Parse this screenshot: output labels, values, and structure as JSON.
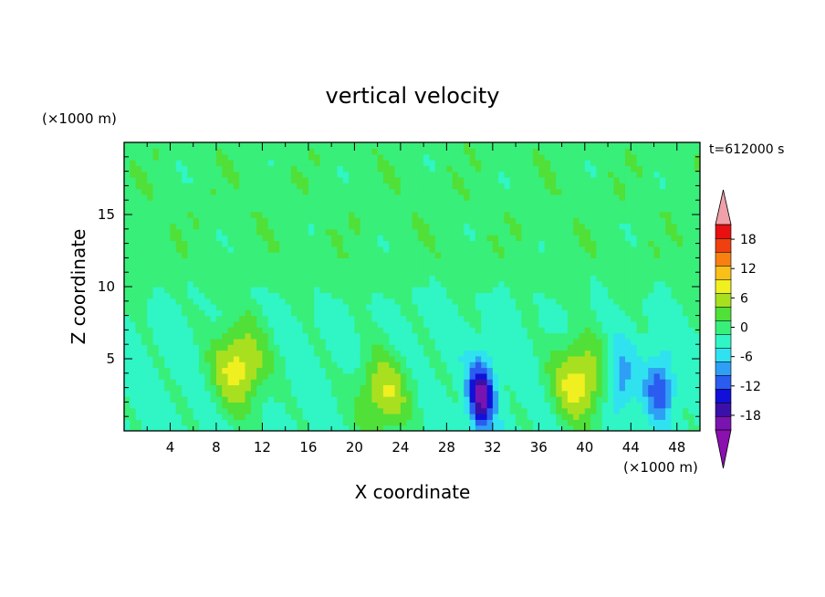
{
  "chart_data": {
    "type": "heatmap",
    "title": "vertical velocity",
    "xlabel": "X coordinate",
    "ylabel": "Z coordinate",
    "x_unit": "(×1000 m)",
    "y_unit": "(×1000 m)",
    "time_label": "t=612000 s",
    "xlim": [
      0,
      50
    ],
    "ylim": [
      0,
      20
    ],
    "x_ticks": [
      4,
      8,
      12,
      16,
      20,
      24,
      28,
      32,
      36,
      40,
      44,
      48
    ],
    "y_ticks": [
      5,
      10,
      15
    ],
    "colorbar": {
      "levels": [
        -21,
        -18,
        -15,
        -12,
        -9,
        -6,
        -3,
        0,
        3,
        6,
        9,
        12,
        15,
        18,
        21
      ],
      "tick_labels": [
        "18",
        "12",
        "6",
        "0",
        "-6",
        "-12",
        "-18"
      ],
      "tick_values": [
        18,
        12,
        6,
        0,
        -6,
        -12,
        -18
      ],
      "colors": [
        "#7a14b0",
        "#3a10a8",
        "#1010d8",
        "#2a5cf0",
        "#2e9ff5",
        "#30e2f0",
        "#30f5c4",
        "#38ef7a",
        "#50e038",
        "#a8e020",
        "#f0f020",
        "#f8c018",
        "#f88010",
        "#f04010",
        "#e81010"
      ],
      "under_color": "#8a10b0",
      "over_color": "#f0a0a8"
    },
    "features": [
      {
        "type": "updraft",
        "x": 10,
        "z": 4.5,
        "peak": 12
      },
      {
        "type": "updraft",
        "x": 22.5,
        "z": 2.5,
        "peak": 10
      },
      {
        "type": "downdraft",
        "x": 31,
        "z": 2.5,
        "peak": -18
      },
      {
        "type": "updraft",
        "x": 39.5,
        "z": 3.5,
        "peak": 12
      },
      {
        "type": "downdraft",
        "x": 46.5,
        "z": 3,
        "peak": -10
      },
      {
        "type": "downdraft",
        "x": 43,
        "z": 3.5,
        "peak": -8
      }
    ]
  }
}
